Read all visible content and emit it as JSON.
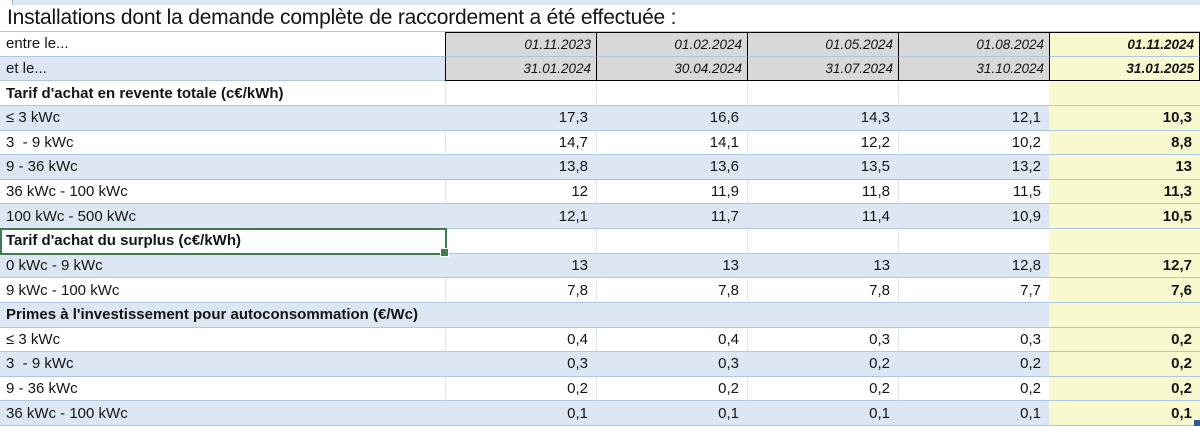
{
  "title": "Installations dont la demande complète de raccordement a été effectuée :",
  "table": {
    "rows": [
      {
        "kind": "period",
        "label": "entre le...",
        "values": [
          "01.11.2023",
          "01.02.2024",
          "01.05.2024",
          "01.08.2024",
          "01.11.2024"
        ]
      },
      {
        "kind": "period",
        "label": "et le...",
        "values": [
          "31.01.2024",
          "30.04.2024",
          "31.07.2024",
          "31.10.2024",
          "31.01.2025"
        ]
      },
      {
        "kind": "section",
        "label": "Tarif d'achat en revente totale (c€/kWh)",
        "values": [
          "",
          "",
          "",
          "",
          ""
        ]
      },
      {
        "kind": "data",
        "label": "≤ 3 kWc",
        "values": [
          "17,3",
          "16,6",
          "14,3",
          "12,1",
          "10,3"
        ]
      },
      {
        "kind": "data",
        "label": "3  - 9 kWc",
        "values": [
          "14,7",
          "14,1",
          "12,2",
          "10,2",
          "8,8"
        ]
      },
      {
        "kind": "data",
        "label": "9 - 36 kWc",
        "values": [
          "13,8",
          "13,6",
          "13,5",
          "13,2",
          "13"
        ]
      },
      {
        "kind": "data",
        "label": "36 kWc - 100 kWc",
        "values": [
          "12",
          "11,9",
          "11,8",
          "11,5",
          "11,3"
        ]
      },
      {
        "kind": "data",
        "label": "100 kWc - 500 kWc",
        "values": [
          "12,1",
          "11,7",
          "11,4",
          "10,9",
          "10,5"
        ]
      },
      {
        "kind": "section",
        "label": "Tarif d'achat du surplus (c€/kWh)",
        "values": [
          "",
          "",
          "",
          "",
          ""
        ],
        "selected": true
      },
      {
        "kind": "data",
        "label": "0 kWc - 9 kWc",
        "values": [
          "13",
          "13",
          "13",
          "12,8",
          "12,7"
        ]
      },
      {
        "kind": "data",
        "label": "9 kWc - 100 kWc",
        "values": [
          "7,8",
          "7,8",
          "7,8",
          "7,7",
          "7,6"
        ]
      },
      {
        "kind": "section",
        "label": "Primes à l'investissement pour autoconsommation (€/Wc)",
        "values": [
          "",
          "",
          "",
          "",
          ""
        ]
      },
      {
        "kind": "data",
        "label": "≤ 3 kWc",
        "values": [
          "0,4",
          "0,4",
          "0,3",
          "0,3",
          "0,2"
        ]
      },
      {
        "kind": "data",
        "label": "3  - 9 kWc",
        "values": [
          "0,3",
          "0,3",
          "0,2",
          "0,2",
          "0,2"
        ]
      },
      {
        "kind": "data",
        "label": "9 - 36 kWc",
        "values": [
          "0,2",
          "0,2",
          "0,2",
          "0,2",
          "0,2"
        ]
      },
      {
        "kind": "data",
        "label": "36 kWc - 100 kWc",
        "values": [
          "0,1",
          "0,1",
          "0,1",
          "0,1",
          "0,1"
        ]
      }
    ]
  },
  "colors": {
    "row_alt_blue": "#dce7f3",
    "highlight_column_yellow": "#f8f9ce",
    "period_header_gray": "#d8d8d8",
    "grid_line_blue": "#adc7e1",
    "header_border_black": "#000000",
    "selection_green": "#3e7b4e",
    "corner_artifact_blue": "#2f5b92"
  }
}
